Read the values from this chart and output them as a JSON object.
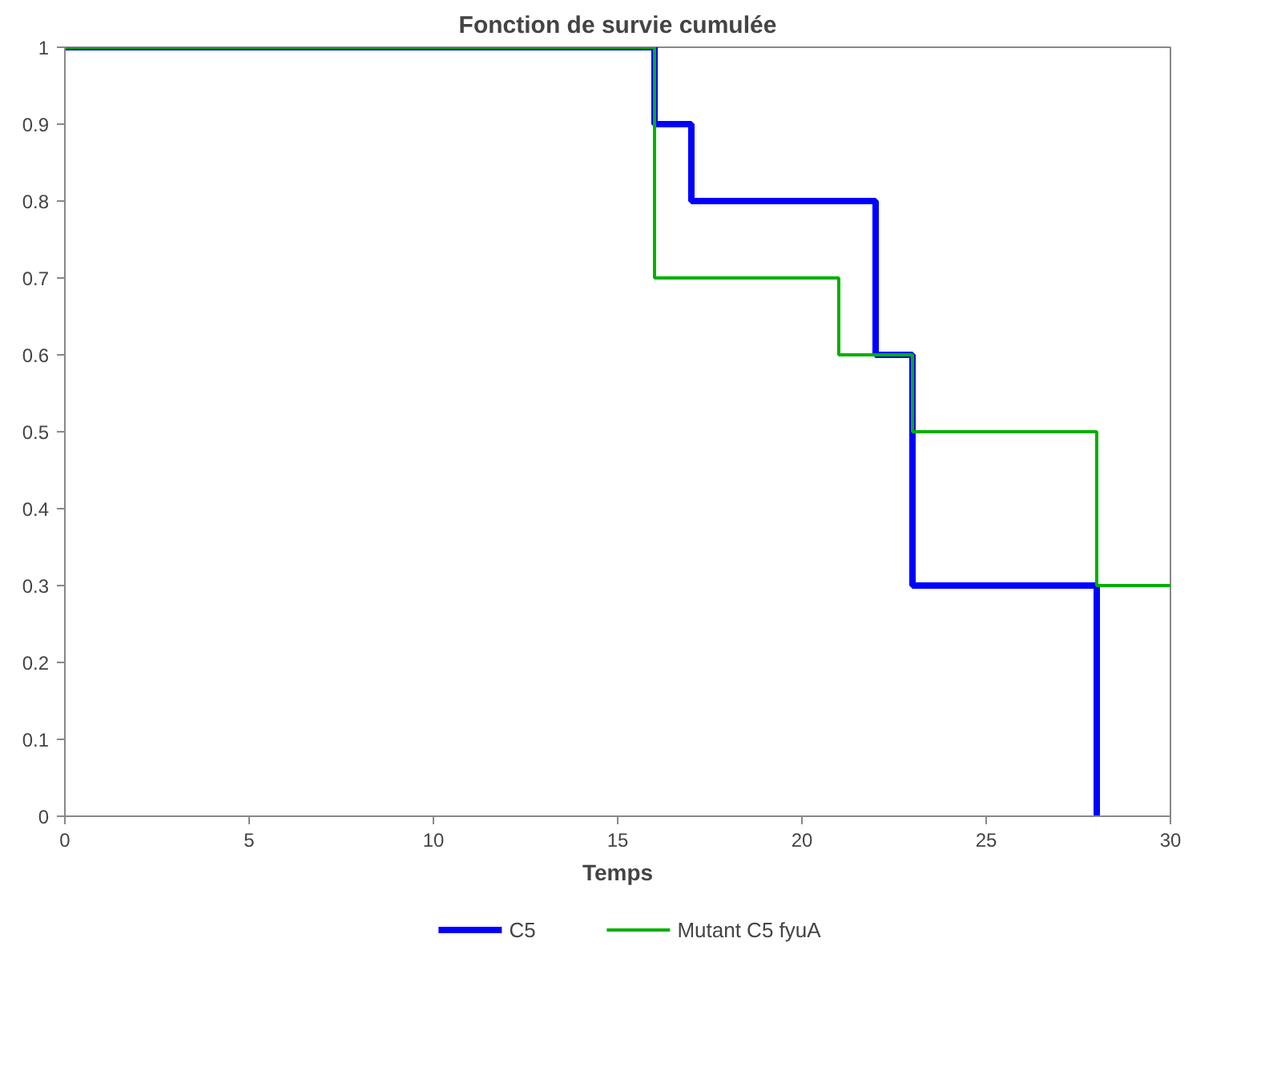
{
  "chart_data": {
    "type": "step",
    "title": "Fonction de survie cumulée",
    "xlabel": "Temps",
    "xlim": [
      0,
      30
    ],
    "xticks": [
      0,
      5,
      10,
      15,
      20,
      25,
      30
    ],
    "ylim": [
      0,
      1
    ],
    "yticks": [
      0,
      0.1,
      0.2,
      0.3,
      0.4,
      0.5,
      0.6,
      0.7,
      0.8,
      0.9,
      1
    ],
    "grid": false,
    "legend": "bottom",
    "series": [
      {
        "name": "C5",
        "color": "#0000ff",
        "x": [
          0,
          16,
          17,
          22,
          23,
          28
        ],
        "values": [
          1,
          0.9,
          0.8,
          0.6,
          0.3,
          0
        ]
      },
      {
        "name": "Mutant C5 fyuA",
        "color": "#00b000",
        "x": [
          0,
          16,
          21,
          23,
          28,
          30
        ],
        "values": [
          1,
          0.7,
          0.6,
          0.5,
          0.3,
          0.3
        ]
      }
    ]
  }
}
